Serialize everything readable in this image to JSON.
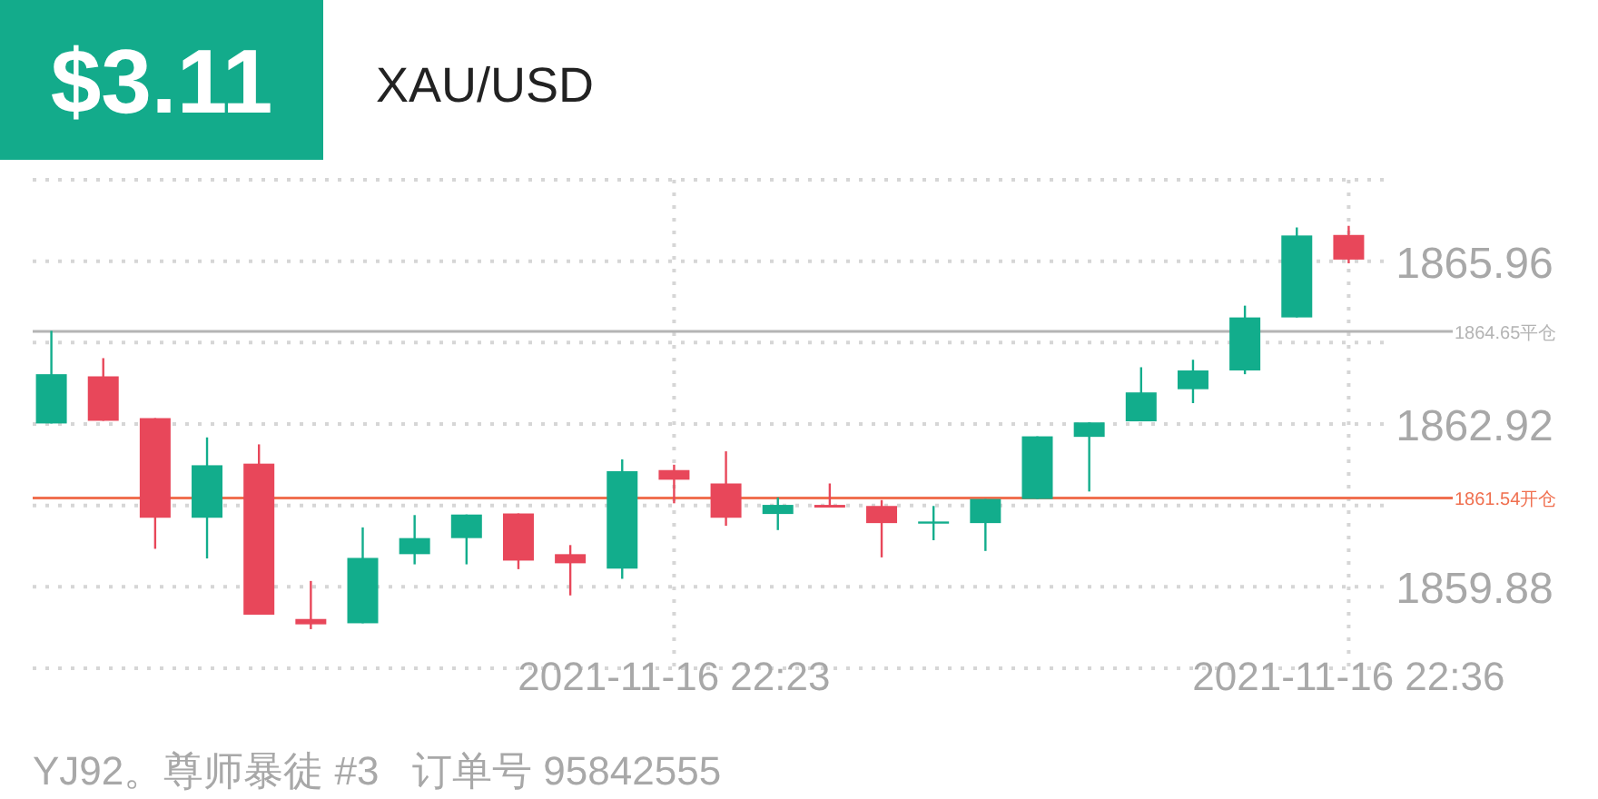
{
  "chart_data": {
    "type": "candlestick",
    "title": "$3.11",
    "subtitle": "XAU/USD",
    "categories": [
      null,
      null,
      null,
      null,
      null,
      null,
      null,
      null,
      null,
      null,
      null,
      null,
      "2021-11-16 22:23",
      null,
      null,
      null,
      null,
      null,
      null,
      null,
      null,
      null,
      null,
      null,
      null,
      "2021-11-16 22:36"
    ],
    "ohlc": [
      [
        1862.93,
        1864.66,
        1862.93,
        1863.85
      ],
      [
        1863.81,
        1864.15,
        1862.98,
        1862.98
      ],
      [
        1863.03,
        1863.03,
        1860.59,
        1861.17
      ],
      [
        1861.17,
        1862.67,
        1860.41,
        1862.15
      ],
      [
        1862.18,
        1862.54,
        1859.36,
        1859.36
      ],
      [
        1859.28,
        1859.99,
        1859.09,
        1859.18
      ],
      [
        1859.2,
        1860.99,
        1859.2,
        1860.42
      ],
      [
        1860.49,
        1861.22,
        1860.3,
        1860.79
      ],
      [
        1860.79,
        1861.23,
        1860.3,
        1861.23
      ],
      [
        1861.25,
        1861.25,
        1860.21,
        1860.37
      ],
      [
        1860.49,
        1860.66,
        1859.72,
        1860.32
      ],
      [
        1860.22,
        1862.26,
        1860.03,
        1862.04
      ],
      [
        1862.06,
        1862.16,
        1861.44,
        1861.88
      ],
      [
        1861.81,
        1862.41,
        1861.02,
        1861.17
      ],
      [
        1861.24,
        1861.55,
        1860.94,
        1861.41
      ],
      [
        1861.41,
        1861.81,
        1861.36,
        1861.36
      ],
      [
        1861.39,
        1861.5,
        1860.43,
        1861.07
      ],
      [
        1861.06,
        1861.39,
        1860.75,
        1861.1
      ],
      [
        1861.07,
        1861.52,
        1860.55,
        1861.52
      ],
      [
        1861.52,
        1862.69,
        1861.52,
        1862.69
      ],
      [
        1862.68,
        1862.95,
        1861.66,
        1862.95
      ],
      [
        1862.97,
        1863.98,
        1862.97,
        1863.51
      ],
      [
        1863.57,
        1864.12,
        1863.31,
        1863.92
      ],
      [
        1863.92,
        1865.13,
        1863.85,
        1864.91
      ],
      [
        1864.91,
        1866.59,
        1864.91,
        1866.44
      ],
      [
        1866.45,
        1866.62,
        1865.92,
        1865.99
      ]
    ],
    "colors": [
      "#12ad8c",
      "#e8475a",
      "#e8475a",
      "#12ad8c",
      "#e8475a",
      "#e8475a",
      "#12ad8c",
      "#12ad8c",
      "#12ad8c",
      "#e8475a",
      "#e8475a",
      "#12ad8c",
      "#e8475a",
      "#e8475a",
      "#12ad8c",
      "#e8475a",
      "#e8475a",
      "#12ad8c",
      "#12ad8c",
      "#12ad8c",
      "#12ad8c",
      "#12ad8c",
      "#12ad8c",
      "#12ad8c",
      "#12ad8c",
      "#e8475a"
    ],
    "ylim": [
      1858.36,
      1867.48
    ],
    "yticks": [
      {
        "value": 1858.36,
        "label": null
      },
      1859.88,
      {
        "value": 1861.4,
        "label": null
      },
      1862.92,
      {
        "value": 1864.44,
        "label": null
      },
      1865.96,
      {
        "value": 1867.48,
        "label": null
      }
    ],
    "grid": true,
    "ref_lines": [
      {
        "axis": "y",
        "value": 1864.65,
        "label": "1864.65平仓",
        "color": "#b4b4b4"
      },
      {
        "axis": "y",
        "value": 1861.54,
        "label": "1861.54开仓",
        "color": "#f07050"
      }
    ],
    "annotations": [
      "YJ92。尊师暴徒 #3   订单号 95842555"
    ]
  }
}
